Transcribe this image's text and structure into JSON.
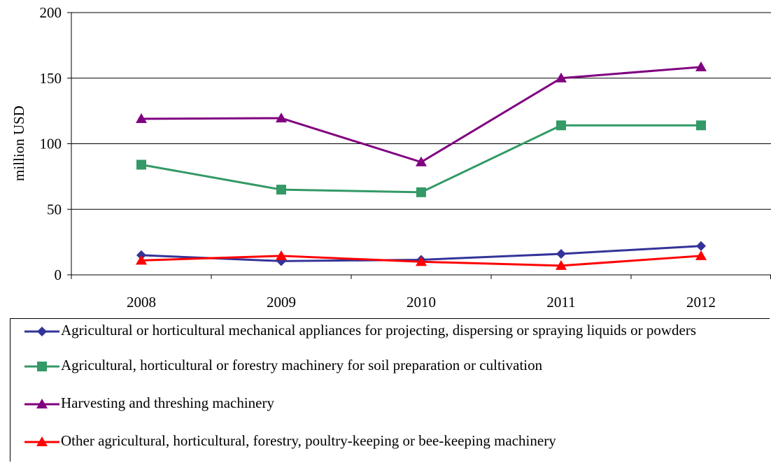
{
  "chart_data": {
    "type": "line",
    "categories": [
      "2008",
      "2009",
      "2010",
      "2011",
      "2012"
    ],
    "ylabel": "million USD",
    "xlabel": "",
    "ylim": [
      0,
      200
    ],
    "yticks": [
      "0",
      "50",
      "100",
      "150",
      "200"
    ],
    "grid": "horizontal",
    "legend_position": "bottom",
    "series": [
      {
        "name": "Agricultural or horticultural mechanical appliances for projecting, dispersing or spraying liquids or powders",
        "values": [
          15,
          10.5,
          11.5,
          16,
          22
        ],
        "color": "#333399",
        "marker": "diamond"
      },
      {
        "name": "Agricultural, horticultural or forestry machinery for soil preparation or cultivation",
        "values": [
          84,
          65,
          63,
          114,
          114
        ],
        "color": "#339966",
        "marker": "square"
      },
      {
        "name": "Harvesting and threshing machinery",
        "values": [
          119,
          119.5,
          86,
          150,
          158.5
        ],
        "color": "#800080",
        "marker": "triangle"
      },
      {
        "name": "Other agricultural, horticultural, forestry, poultry-keeping or bee-keeping machinery",
        "values": [
          11,
          14.5,
          10,
          7,
          14.5
        ],
        "color": "#ff0000",
        "marker": "triangle"
      }
    ]
  }
}
